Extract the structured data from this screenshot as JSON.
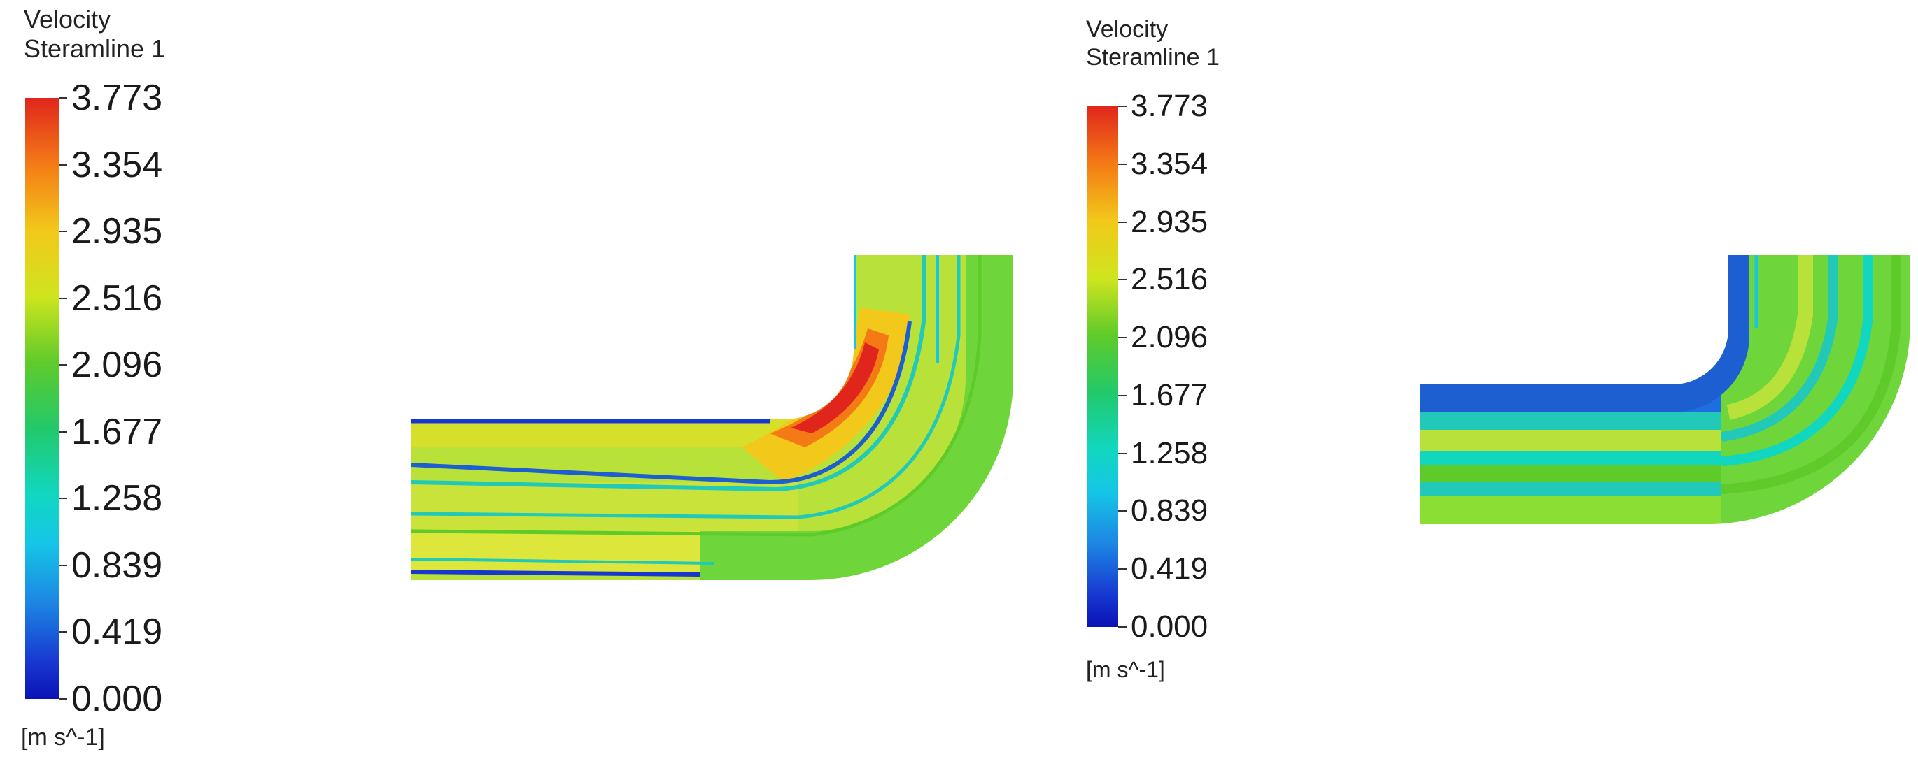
{
  "panels": [
    {
      "legend": {
        "title_line1": "Velocity",
        "title_line2": "Steramline 1",
        "ticks": [
          "3.773",
          "3.354",
          "2.935",
          "2.516",
          "2.096",
          "1.677",
          "1.258",
          "0.839",
          "0.419",
          "0.000"
        ],
        "unit": "[m s^-1]"
      }
    },
    {
      "legend": {
        "title_line1": "Velocity",
        "title_line2": "Steramline 1",
        "ticks": [
          "3.773",
          "3.354",
          "2.935",
          "2.516",
          "2.096",
          "1.677",
          "1.258",
          "0.839",
          "0.419",
          "0.000"
        ],
        "unit": "[m s^-1]"
      }
    }
  ],
  "colors": {
    "high": "#e0261c",
    "mid_high": "#f2c81a",
    "mid": "#5fcb2a",
    "mid_low": "#11d7c0",
    "low": "#0b12b6"
  }
}
